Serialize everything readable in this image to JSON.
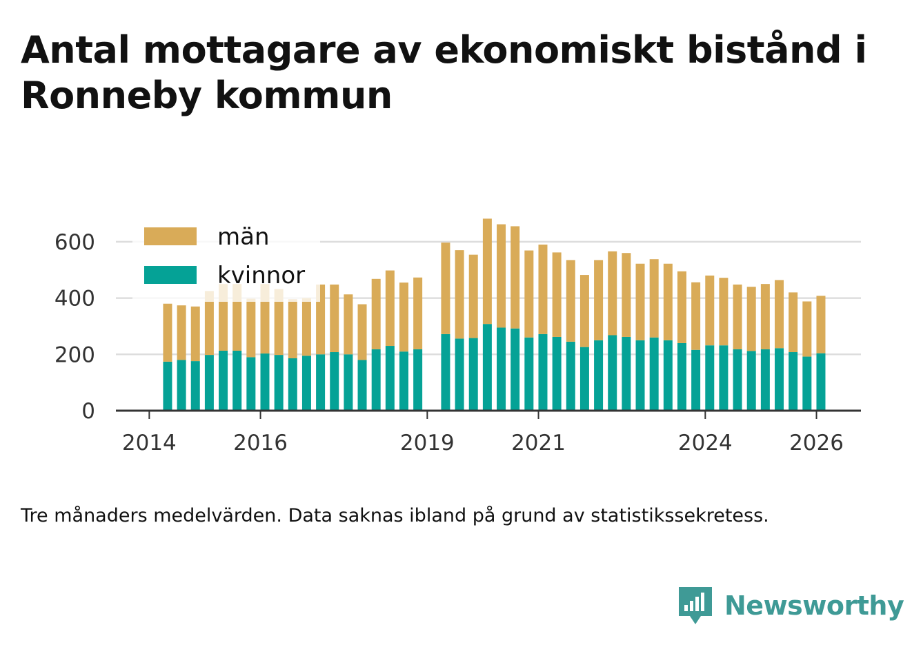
{
  "title": "Antal mottagare av ekonomiskt bistånd i Ronneby kommun",
  "note": "Tre månaders medelvärden. Data saknas ibland på grund av statistikssekretess.",
  "brand": {
    "name": "Newsworthy",
    "icon": "newsworthy-logo-icon",
    "color": "#3f9a96"
  },
  "colors": {
    "man": "#d9ab58",
    "kvinnor": "#05a296",
    "grid": "#dddddd",
    "axis": "#333333",
    "text": "#333333"
  },
  "chart_data": {
    "type": "bar",
    "stacked": true,
    "legend_position": "top-left",
    "grid": true,
    "ylim": [
      0,
      700
    ],
    "yticks": [
      0,
      200,
      400,
      600
    ],
    "ytick_labels": [
      "0",
      "200",
      "400",
      "600"
    ],
    "x_tick_labels": [
      "2014",
      "2016",
      "2019",
      "2021",
      "2024",
      "2026"
    ],
    "x_tick_positions": [
      2014.0,
      2016.0,
      2019.0,
      2021.0,
      2024.0,
      2026.0
    ],
    "xlim": [
      2013.4,
      2026.8
    ],
    "x": [
      2014.33,
      2014.58,
      2014.83,
      2015.08,
      2015.33,
      2015.58,
      2015.83,
      2016.08,
      2016.33,
      2016.58,
      2016.83,
      2017.08,
      2017.33,
      2017.58,
      2017.83,
      2018.08,
      2018.33,
      2018.58,
      2018.83,
      2019.33,
      2019.58,
      2019.83,
      2020.08,
      2020.33,
      2020.58,
      2020.83,
      2021.08,
      2021.33,
      2021.58,
      2021.83,
      2022.08,
      2022.33,
      2022.58,
      2022.83,
      2023.08,
      2023.33,
      2023.58,
      2023.83,
      2024.08,
      2024.33,
      2024.58,
      2024.83,
      2025.08,
      2025.33,
      2025.58,
      2025.83,
      2026.08
    ],
    "series": [
      {
        "name": "kvinnor",
        "color": "#05a296",
        "values": [
          174,
          180,
          176,
          198,
          213,
          213,
          190,
          203,
          198,
          186,
          195,
          200,
          208,
          200,
          180,
          218,
          230,
          210,
          218,
          272,
          256,
          258,
          308,
          295,
          292,
          260,
          272,
          262,
          245,
          226,
          250,
          268,
          262,
          250,
          260,
          250,
          240,
          216,
          232,
          232,
          218,
          212,
          218,
          222,
          208,
          192,
          204
        ]
      },
      {
        "name": "män",
        "color": "#d9ab58",
        "values": [
          206,
          194,
          194,
          227,
          237,
          237,
          208,
          247,
          234,
          210,
          205,
          248,
          240,
          213,
          198,
          250,
          268,
          245,
          255,
          325,
          314,
          296,
          374,
          367,
          363,
          309,
          318,
          300,
          290,
          256,
          285,
          298,
          298,
          272,
          278,
          272,
          255,
          240,
          248,
          240,
          230,
          228,
          232,
          242,
          212,
          196,
          204
        ]
      }
    ],
    "legend": [
      {
        "label": "män",
        "color": "#d9ab58"
      },
      {
        "label": "kvinnor",
        "color": "#05a296"
      }
    ]
  }
}
